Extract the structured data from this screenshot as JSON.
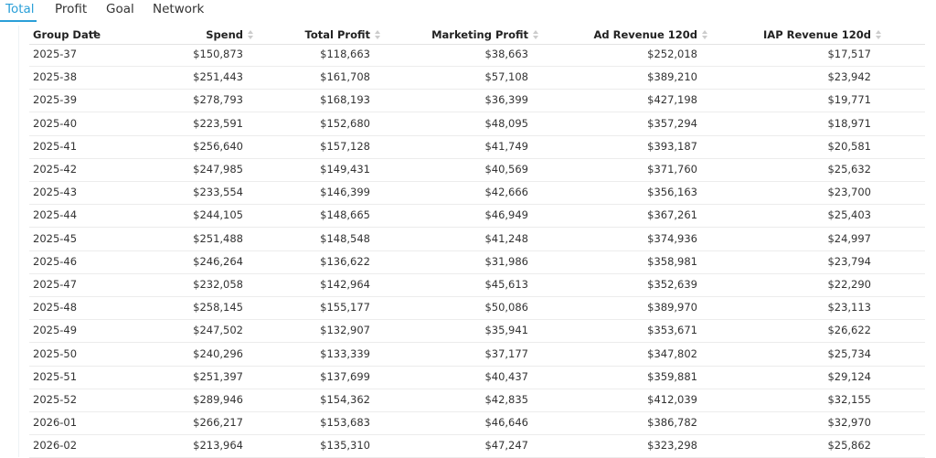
{
  "tabs": [
    "Total",
    "Profit",
    "Goal",
    "Network"
  ],
  "table": {
    "columns": [
      "Group Date",
      "Spend",
      "Total Profit",
      "Marketing Profit",
      "Ad Revenue 120d",
      "IAP Revenue 120d"
    ],
    "rows": [
      [
        "2025-37",
        "$150,873",
        "$118,663",
        "$38,663",
        "$252,018",
        "$17,517"
      ],
      [
        "2025-38",
        "$251,443",
        "$161,708",
        "$57,108",
        "$389,210",
        "$23,942"
      ],
      [
        "2025-39",
        "$278,793",
        "$168,193",
        "$36,399",
        "$427,198",
        "$19,771"
      ],
      [
        "2025-40",
        "$223,591",
        "$152,680",
        "$48,095",
        "$357,294",
        "$18,971"
      ],
      [
        "2025-41",
        "$256,640",
        "$157,128",
        "$41,749",
        "$393,187",
        "$20,581"
      ],
      [
        "2025-42",
        "$247,985",
        "$149,431",
        "$40,569",
        "$371,760",
        "$25,632"
      ],
      [
        "2025-43",
        "$233,554",
        "$146,399",
        "$42,666",
        "$356,163",
        "$23,700"
      ],
      [
        "2025-44",
        "$244,105",
        "$148,665",
        "$46,949",
        "$367,261",
        "$25,403"
      ],
      [
        "2025-45",
        "$251,488",
        "$148,548",
        "$41,248",
        "$374,936",
        "$24,997"
      ],
      [
        "2025-46",
        "$246,264",
        "$136,622",
        "$31,986",
        "$358,981",
        "$23,794"
      ],
      [
        "2025-47",
        "$232,058",
        "$142,964",
        "$45,613",
        "$352,639",
        "$22,290"
      ],
      [
        "2025-48",
        "$258,145",
        "$155,177",
        "$50,086",
        "$389,970",
        "$23,113"
      ],
      [
        "2025-49",
        "$247,502",
        "$132,907",
        "$35,941",
        "$353,671",
        "$26,622"
      ],
      [
        "2025-50",
        "$240,296",
        "$133,339",
        "$37,177",
        "$347,802",
        "$25,734"
      ],
      [
        "2025-51",
        "$251,397",
        "$137,699",
        "$40,437",
        "$359,881",
        "$29,124"
      ],
      [
        "2025-52",
        "$289,946",
        "$154,362",
        "$42,835",
        "$412,039",
        "$32,155"
      ],
      [
        "2026-01",
        "$266,217",
        "$153,683",
        "$46,646",
        "$386,782",
        "$32,970"
      ],
      [
        "2026-02",
        "$213,964",
        "$135,310",
        "$47,247",
        "$323,298",
        "$25,862"
      ]
    ]
  }
}
